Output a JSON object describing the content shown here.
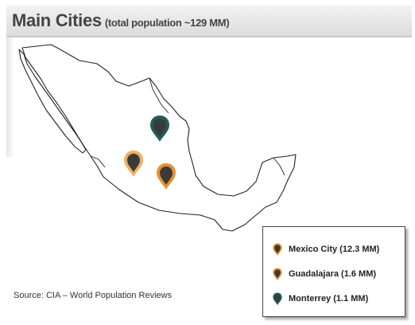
{
  "header": {
    "title": "Main Cities",
    "subtitle": "(total population ~129 MM)"
  },
  "source": "Source: CIA – World Population Reviews",
  "colors": {
    "pin_body": "#3a3a3a",
    "orange_ring": "#e8902c",
    "teal_ring": "#1f5f5c",
    "map_outline": "#222222"
  },
  "markers": [
    {
      "name": "Monterrey",
      "ring": "teal",
      "icon": "map-pin-icon"
    },
    {
      "name": "Guadalajara",
      "ring": "orange-light",
      "icon": "map-pin-icon"
    },
    {
      "name": "Mexico City",
      "ring": "orange",
      "icon": "map-pin-icon"
    }
  ],
  "legend": {
    "items": [
      {
        "label": "Mexico City  (12.3 MM)",
        "ring": "orange",
        "icon": "map-pin-icon"
      },
      {
        "label": "Guadalajara  (1.6 MM)",
        "ring": "orange",
        "icon": "map-pin-icon"
      },
      {
        "label": "Monterrey (1.1 MM)",
        "ring": "teal",
        "icon": "map-pin-icon"
      }
    ]
  }
}
